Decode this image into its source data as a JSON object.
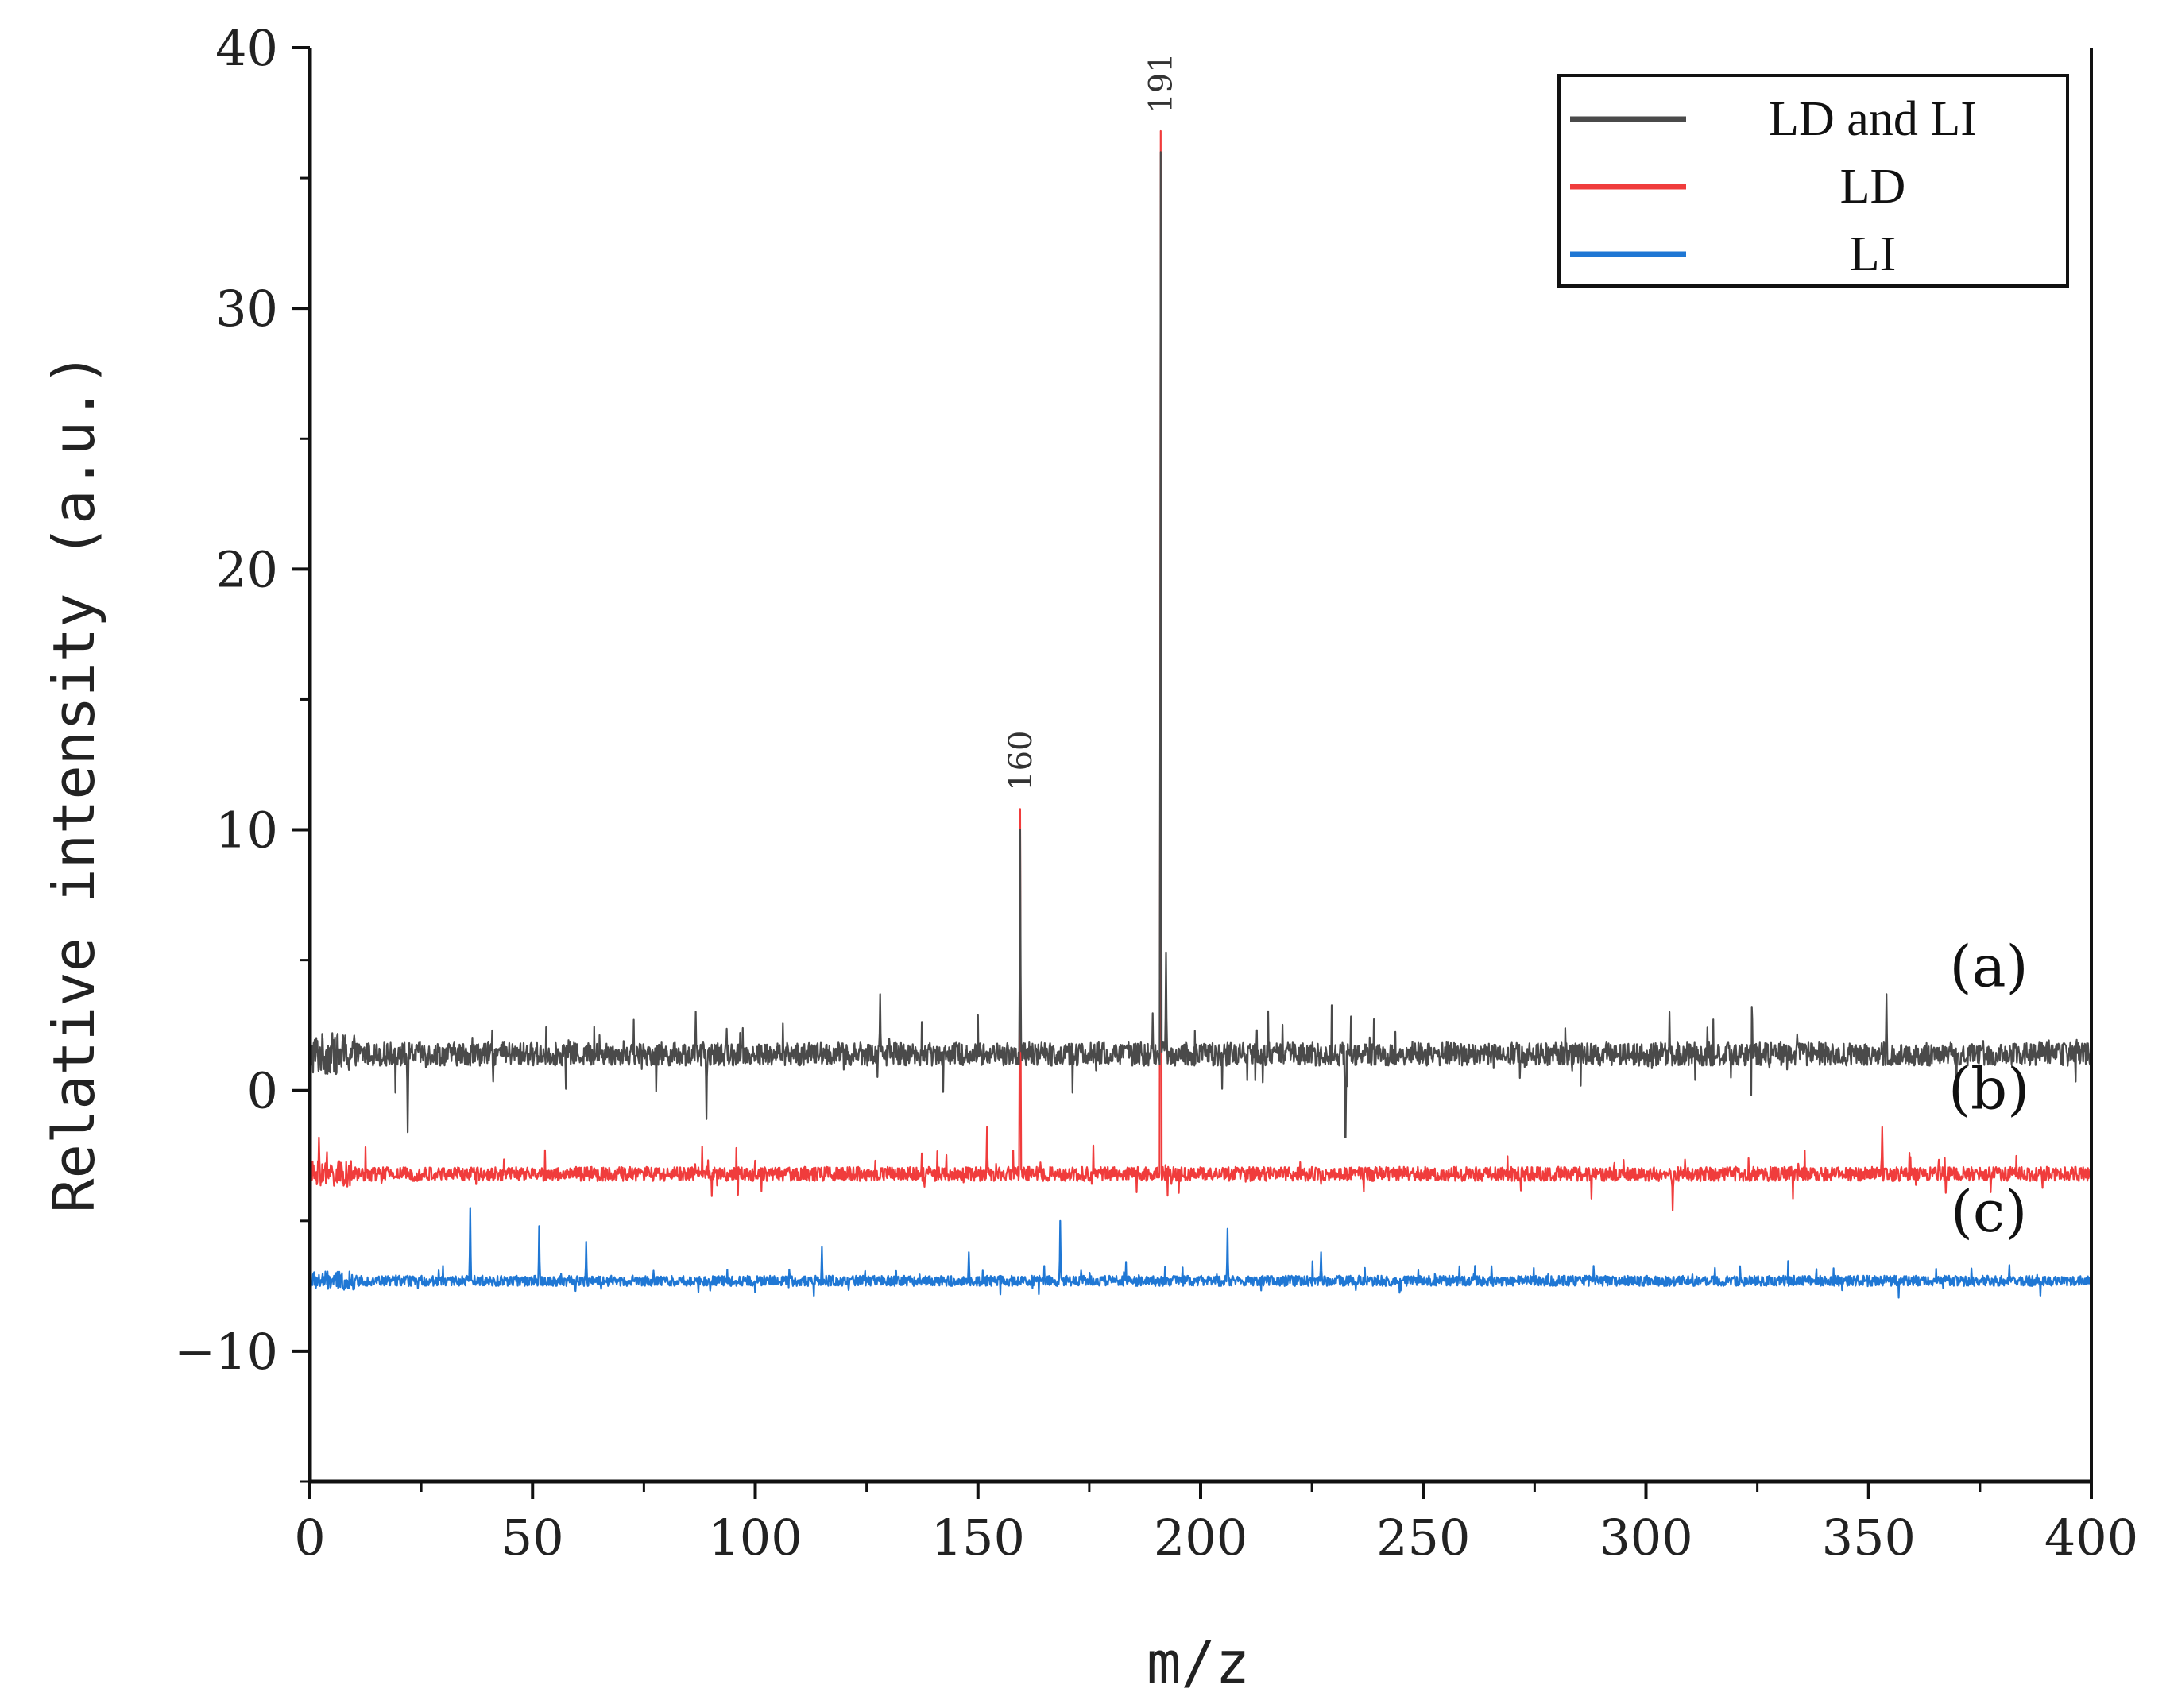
{
  "chart_data": {
    "type": "line",
    "xlabel": "m/z",
    "ylabel": "Relative intensity (a.u.)",
    "xlim": [
      0,
      400
    ],
    "ylim": [
      -15,
      40
    ],
    "x_ticks": [
      0,
      50,
      100,
      150,
      200,
      250,
      300,
      350,
      400
    ],
    "y_ticks": [
      -10,
      0,
      10,
      20,
      30,
      40
    ],
    "grid": false,
    "legend_position": "top-right",
    "series": [
      {
        "name": "LD and LI",
        "color": "#4a4a4a",
        "baseline": 1.4,
        "noise": 0.9,
        "peaks": [
          {
            "x": 128,
            "y": 3.7
          },
          {
            "x": 159.5,
            "y": 10.0
          },
          {
            "x": 191,
            "y": 36.0
          },
          {
            "x": 192.2,
            "y": 5.3
          },
          {
            "x": 232.5,
            "y": -1.8
          },
          {
            "x": 354,
            "y": 3.7
          },
          {
            "x": 22,
            "y": -1.6
          },
          {
            "x": 89,
            "y": -1.1
          }
        ]
      },
      {
        "name": "LD",
        "color": "#f03c3c",
        "baseline": -3.2,
        "noise": 0.55,
        "peaks": [
          {
            "x": 2,
            "y": -1.8
          },
          {
            "x": 152,
            "y": -1.4
          },
          {
            "x": 353,
            "y": -1.4
          },
          {
            "x": 159.5,
            "y": 10.8
          },
          {
            "x": 191,
            "y": 36.8
          },
          {
            "x": 306,
            "y": -4.6
          }
        ]
      },
      {
        "name": "LI",
        "color": "#1f77d4",
        "baseline": -7.3,
        "noise": 0.4,
        "peaks": [
          {
            "x": 36,
            "y": -4.5
          },
          {
            "x": 51.5,
            "y": -5.2
          },
          {
            "x": 62,
            "y": -5.8
          },
          {
            "x": 115,
            "y": -6.0
          },
          {
            "x": 168.5,
            "y": -5.0
          },
          {
            "x": 206,
            "y": -5.3
          },
          {
            "x": 148,
            "y": -6.2
          },
          {
            "x": 227,
            "y": -6.2
          }
        ]
      }
    ],
    "annotations": [
      {
        "text": "160",
        "x": 159.5,
        "y": 11.3
      },
      {
        "text": "191",
        "x": 191,
        "y": 37.3
      }
    ],
    "curve_labels": [
      {
        "text": "(a)",
        "x": 377,
        "y": 4
      },
      {
        "text": "(b)",
        "x": 377,
        "y": -0.7
      },
      {
        "text": "(c)",
        "x": 377,
        "y": -5.4
      }
    ]
  }
}
